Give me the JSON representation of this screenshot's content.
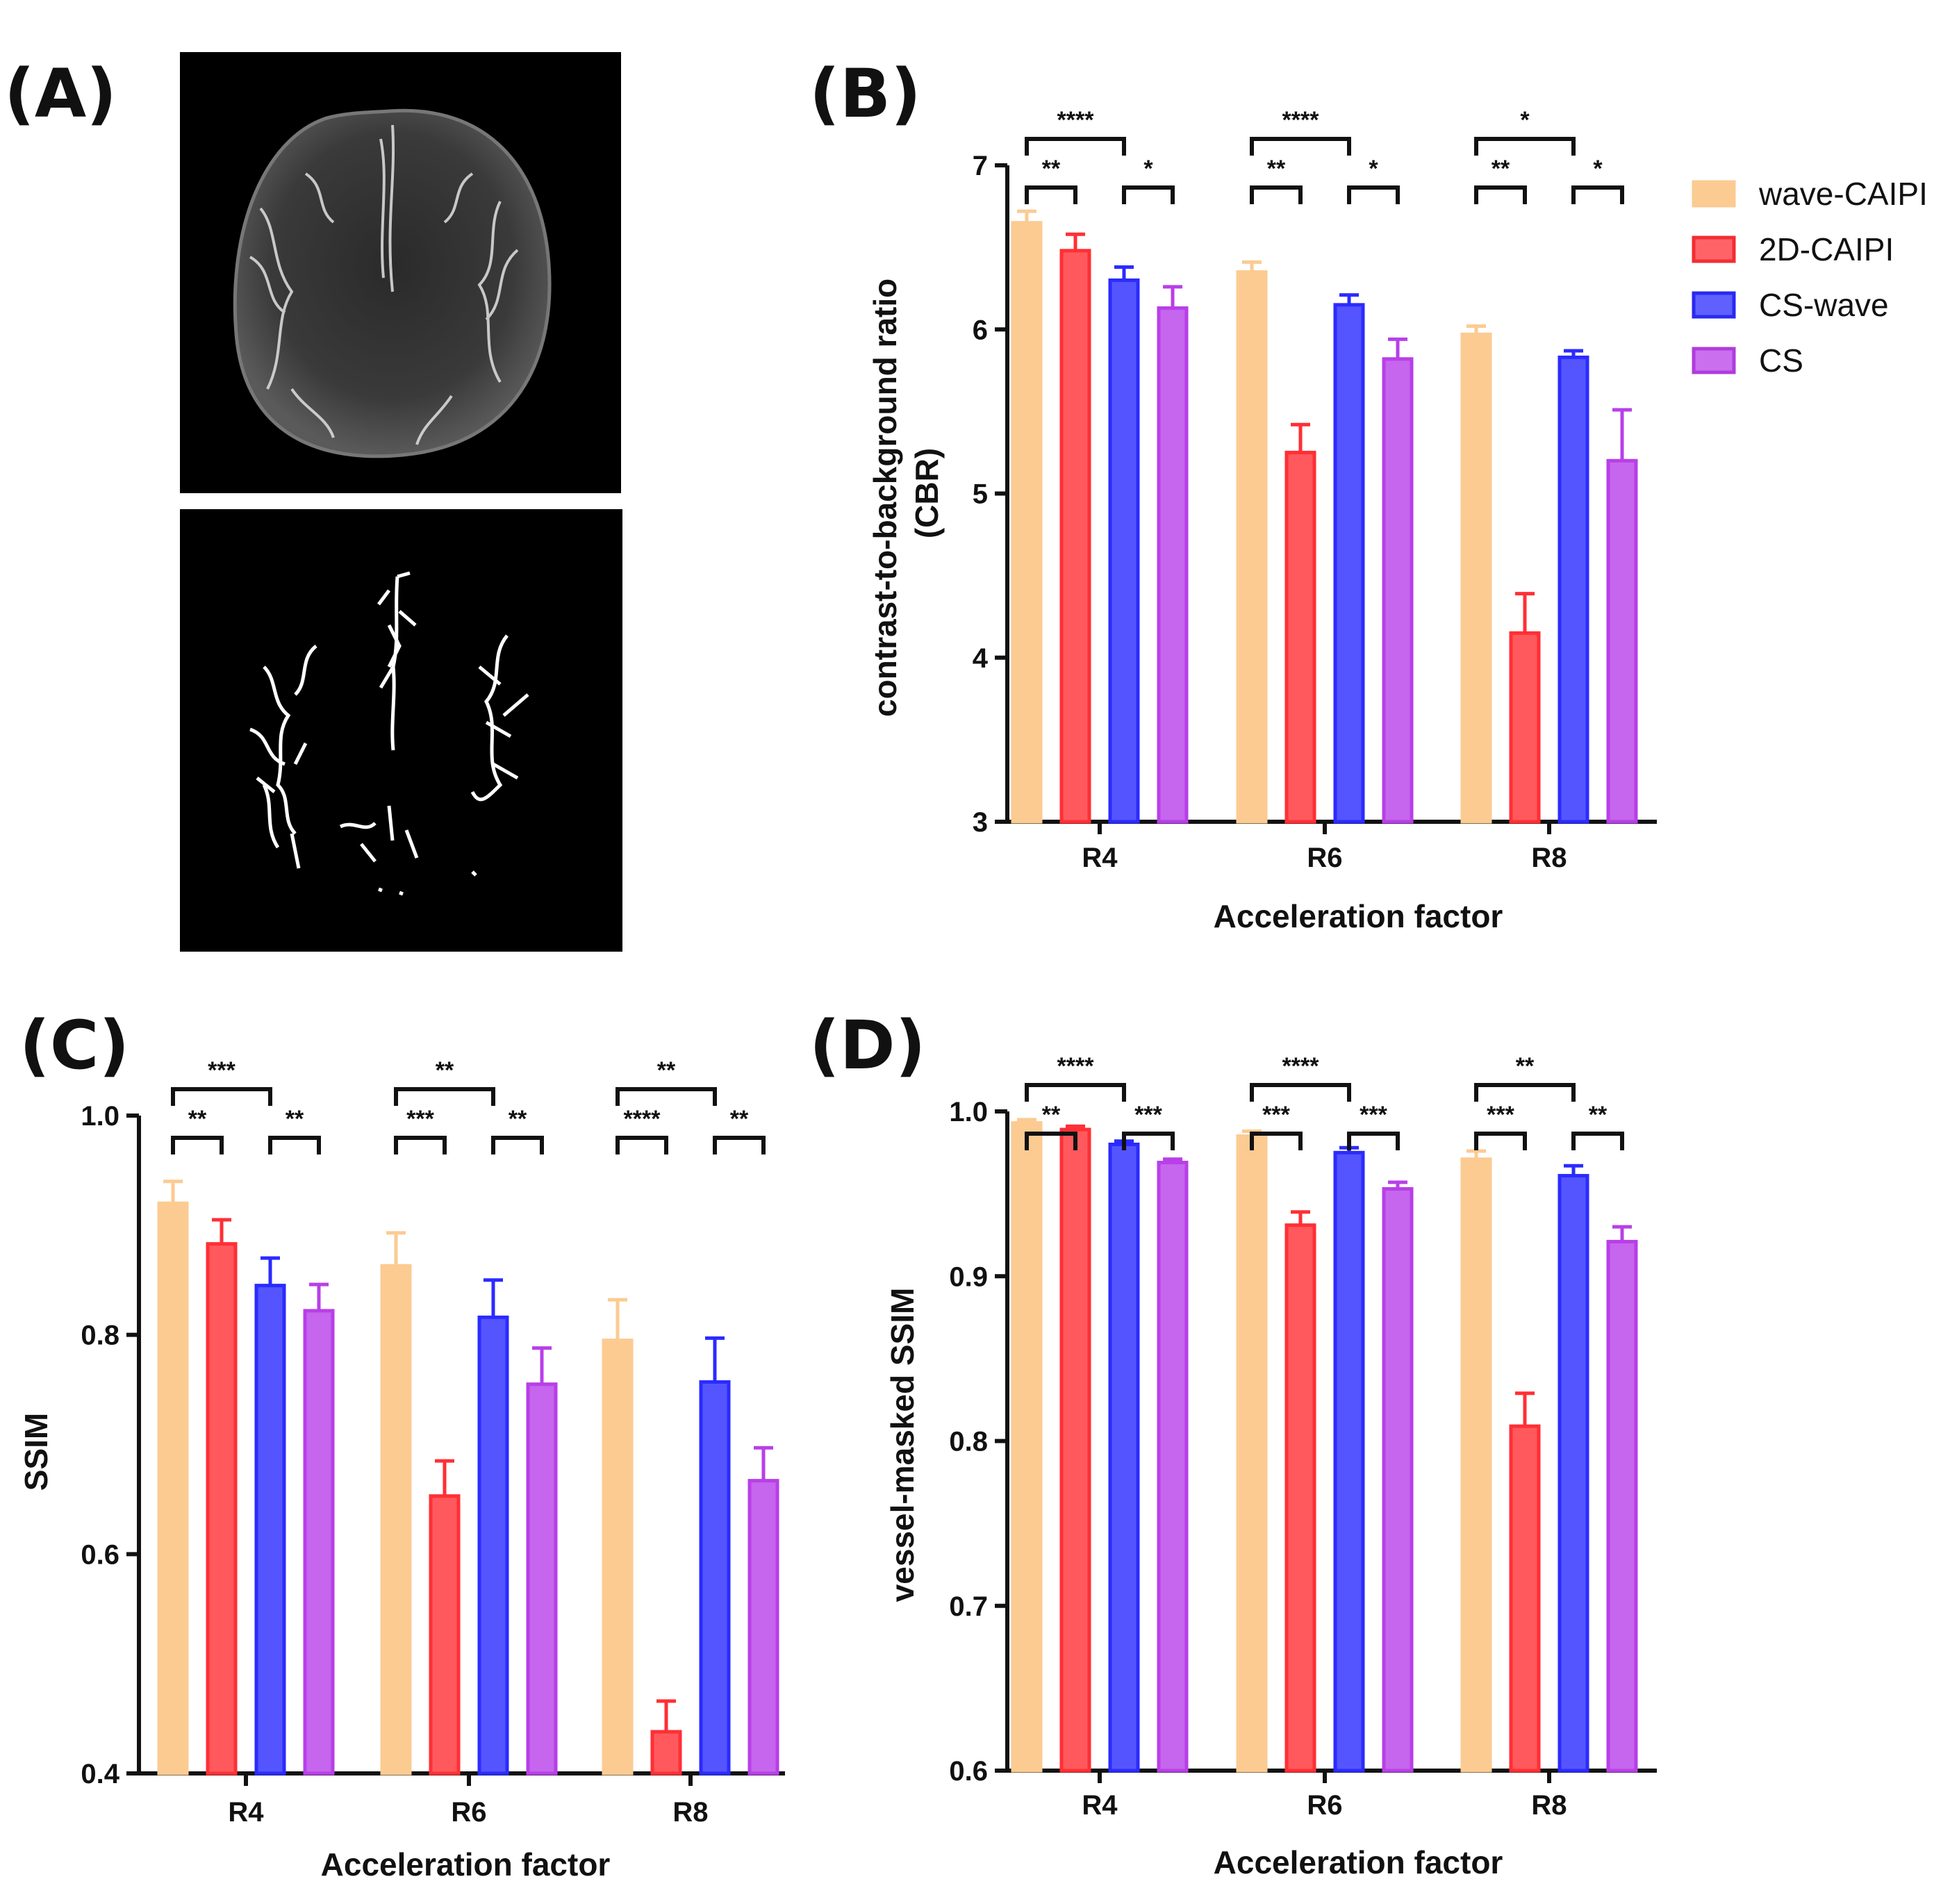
{
  "panels": {
    "A": "(A)",
    "B": "(B)",
    "C": "(C)",
    "D": "(D)"
  },
  "images": {
    "top": "axial MIP brain MRA (grayscale)",
    "bottom": "binary vessel mask"
  },
  "colors": {
    "wave-CAIPI": "#FBCB92",
    "2D-CAIPI": "#FF2F35",
    "CS-wave": "#2B2BFF",
    "CS": "#B83FE8",
    "axis": "#111111"
  },
  "legend": [
    "wave-CAIPI",
    "2D-CAIPI",
    "CS-wave",
    "CS"
  ],
  "chart_data": [
    {
      "id": "B",
      "type": "bar",
      "xlabel": "Acceleration factor",
      "ylabel": "contrast-to-background ratio (CBR)",
      "ylim": [
        3,
        7
      ],
      "yticks": [
        "3",
        "4",
        "5",
        "6",
        "7"
      ],
      "categories": [
        "R4",
        "R6",
        "R8"
      ],
      "series": [
        {
          "name": "wave-CAIPI",
          "values": [
            6.65,
            6.35,
            5.97
          ],
          "errors": [
            0.07,
            0.06,
            0.05
          ]
        },
        {
          "name": "2D-CAIPI",
          "values": [
            6.48,
            5.25,
            4.15
          ],
          "errors": [
            0.1,
            0.17,
            0.24
          ]
        },
        {
          "name": "CS-wave",
          "values": [
            6.3,
            6.15,
            5.83
          ],
          "errors": [
            0.08,
            0.06,
            0.04
          ]
        },
        {
          "name": "CS",
          "values": [
            6.13,
            5.82,
            5.2
          ],
          "errors": [
            0.13,
            0.12,
            0.31
          ]
        }
      ],
      "significance": [
        {
          "group": 0,
          "pairs": [
            [
              "**",
              0,
              1
            ],
            [
              "*",
              2,
              3
            ],
            [
              "****",
              0,
              2
            ]
          ]
        },
        {
          "group": 1,
          "pairs": [
            [
              "**",
              0,
              1
            ],
            [
              "*",
              2,
              3
            ],
            [
              "****",
              0,
              2
            ]
          ]
        },
        {
          "group": 2,
          "pairs": [
            [
              "**",
              0,
              1
            ],
            [
              "*",
              2,
              3
            ],
            [
              "*",
              0,
              2
            ]
          ]
        }
      ]
    },
    {
      "id": "C",
      "type": "bar",
      "xlabel": "Acceleration factor",
      "ylabel": "SSIM",
      "ylim": [
        0.4,
        1.0
      ],
      "yticks": [
        "0.4",
        "0.6",
        "0.8",
        "1.0"
      ],
      "categories": [
        "R4",
        "R6",
        "R8"
      ],
      "series": [
        {
          "name": "wave-CAIPI",
          "values": [
            0.92,
            0.863,
            0.795
          ],
          "errors": [
            0.02,
            0.03,
            0.037
          ]
        },
        {
          "name": "2D-CAIPI",
          "values": [
            0.883,
            0.653,
            0.438
          ],
          "errors": [
            0.022,
            0.032,
            0.028
          ]
        },
        {
          "name": "CS-wave",
          "values": [
            0.845,
            0.816,
            0.757
          ],
          "errors": [
            0.025,
            0.034,
            0.04
          ]
        },
        {
          "name": "CS",
          "values": [
            0.822,
            0.755,
            0.667
          ],
          "errors": [
            0.024,
            0.033,
            0.03
          ]
        }
      ],
      "significance": [
        {
          "group": 0,
          "pairs": [
            [
              "**",
              0,
              1
            ],
            [
              "**",
              2,
              3
            ],
            [
              "***",
              0,
              2
            ]
          ]
        },
        {
          "group": 1,
          "pairs": [
            [
              "***",
              0,
              1
            ],
            [
              "**",
              2,
              3
            ],
            [
              "**",
              0,
              2
            ]
          ]
        },
        {
          "group": 2,
          "pairs": [
            [
              "****",
              0,
              1
            ],
            [
              "**",
              2,
              3
            ],
            [
              "**",
              0,
              2
            ]
          ]
        }
      ]
    },
    {
      "id": "D",
      "type": "bar",
      "xlabel": "Acceleration factor",
      "ylabel": "vessel-masked SSIM",
      "ylim": [
        0.6,
        1.0
      ],
      "yticks": [
        "0.6",
        "0.7",
        "0.8",
        "0.9",
        "1.0"
      ],
      "categories": [
        "R4",
        "R6",
        "R8"
      ],
      "series": [
        {
          "name": "wave-CAIPI",
          "values": [
            0.993,
            0.985,
            0.971
          ],
          "errors": [
            0.002,
            0.003,
            0.005
          ]
        },
        {
          "name": "2D-CAIPI",
          "values": [
            0.989,
            0.931,
            0.809
          ],
          "errors": [
            0.002,
            0.008,
            0.02
          ]
        },
        {
          "name": "CS-wave",
          "values": [
            0.98,
            0.975,
            0.961
          ],
          "errors": [
            0.002,
            0.003,
            0.006
          ]
        },
        {
          "name": "CS",
          "values": [
            0.969,
            0.953,
            0.921
          ],
          "errors": [
            0.002,
            0.004,
            0.009
          ]
        }
      ],
      "significance": [
        {
          "group": 0,
          "pairs": [
            [
              "**",
              0,
              1
            ],
            [
              "***",
              2,
              3
            ],
            [
              "****",
              0,
              2
            ]
          ]
        },
        {
          "group": 1,
          "pairs": [
            [
              "***",
              0,
              1
            ],
            [
              "***",
              2,
              3
            ],
            [
              "****",
              0,
              2
            ]
          ]
        },
        {
          "group": 2,
          "pairs": [
            [
              "***",
              0,
              1
            ],
            [
              "**",
              2,
              3
            ],
            [
              "**",
              0,
              2
            ]
          ]
        }
      ]
    }
  ]
}
